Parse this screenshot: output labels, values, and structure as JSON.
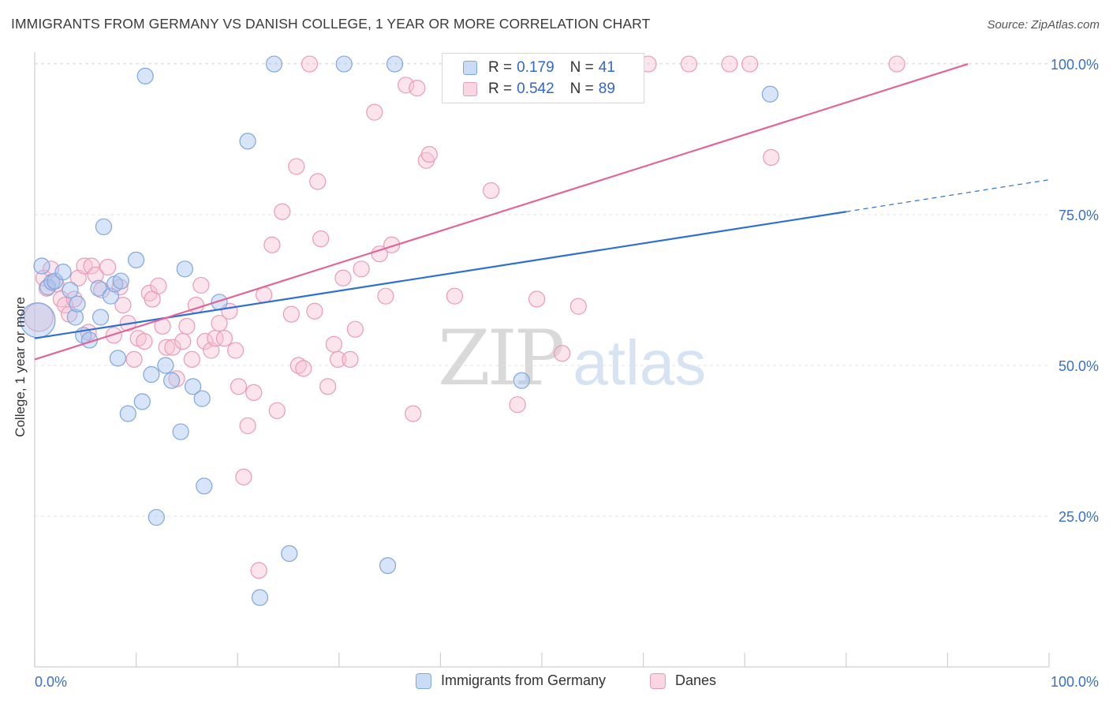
{
  "header": {
    "title": "IMMIGRANTS FROM GERMANY VS DANISH COLLEGE, 1 YEAR OR MORE CORRELATION CHART",
    "source": "Source: ZipAtlas.com"
  },
  "legend_top": {
    "rows": [
      {
        "r_label": "R =",
        "r_value": "0.179",
        "n_label": "N =",
        "n_value": "41",
        "color": "#a8c4ee",
        "border": "#7ea6e0"
      },
      {
        "r_label": "R =",
        "r_value": "0.542",
        "n_label": "N =",
        "n_value": "89",
        "color": "#f7c3d4",
        "border": "#ea9ab5"
      }
    ]
  },
  "watermark": {
    "zip": "ZIP",
    "atlas": "atlas"
  },
  "chart_data": {
    "type": "scatter",
    "title": "IMMIGRANTS FROM GERMANY VS DANISH COLLEGE, 1 YEAR OR MORE CORRELATION CHART",
    "xlabel": "",
    "ylabel": "College, 1 year or more",
    "xlim": [
      0,
      100
    ],
    "ylim": [
      0,
      103
    ],
    "x_tick_labels": [
      "0.0%",
      "100.0%"
    ],
    "y_ticks": [
      25,
      50,
      75,
      100
    ],
    "y_tick_labels": [
      "25.0%",
      "50.0%",
      "75.0%",
      "100.0%"
    ],
    "grid": true,
    "legend_placement": "bottom",
    "series": [
      {
        "name": "Immigrants from Germany",
        "color": "#a8c4ee",
        "edge": "#7ea6e0",
        "line_color": "#2f6fcf",
        "trend": {
          "x0": 0,
          "y0": 54.5,
          "x1": 80,
          "y1": 75.5,
          "dash_x1": 100,
          "dash_y1": 80.8
        },
        "points": [
          [
            0.3,
            57.5,
            22
          ],
          [
            0.7,
            66.5,
            10
          ],
          [
            1.3,
            63.0,
            10
          ],
          [
            1.7,
            63.8,
            10
          ],
          [
            2.0,
            64.0,
            10
          ],
          [
            2.8,
            65.5,
            10
          ],
          [
            3.5,
            62.5,
            10
          ],
          [
            4.0,
            58.0,
            10
          ],
          [
            4.2,
            60.2,
            10
          ],
          [
            4.8,
            55.0,
            10
          ],
          [
            5.4,
            54.2,
            10
          ],
          [
            6.3,
            62.8,
            10
          ],
          [
            6.5,
            58.0,
            10
          ],
          [
            6.8,
            73.0,
            10
          ],
          [
            7.5,
            61.5,
            10
          ],
          [
            7.9,
            63.5,
            10
          ],
          [
            8.2,
            51.2,
            10
          ],
          [
            8.5,
            64.0,
            10
          ],
          [
            9.2,
            42.0,
            10
          ],
          [
            10.0,
            67.5,
            10
          ],
          [
            10.6,
            44.0,
            10
          ],
          [
            10.9,
            98.0,
            10
          ],
          [
            11.5,
            48.5,
            10
          ],
          [
            12.0,
            24.8,
            10
          ],
          [
            12.9,
            50.0,
            10
          ],
          [
            13.5,
            47.5,
            10
          ],
          [
            14.4,
            39.0,
            10
          ],
          [
            14.8,
            66.0,
            10
          ],
          [
            15.6,
            46.5,
            10
          ],
          [
            16.5,
            44.5,
            10
          ],
          [
            16.7,
            30.0,
            10
          ],
          [
            18.2,
            60.5,
            10
          ],
          [
            21.0,
            87.2,
            10
          ],
          [
            22.2,
            11.5,
            10
          ],
          [
            23.6,
            100.0,
            10
          ],
          [
            25.1,
            18.8,
            10
          ],
          [
            30.5,
            100.0,
            10
          ],
          [
            34.8,
            16.8,
            10
          ],
          [
            35.5,
            100.0,
            10
          ],
          [
            48.0,
            47.5,
            10
          ],
          [
            72.5,
            95.0,
            10
          ]
        ]
      },
      {
        "name": "Danes",
        "color": "#f7c3d4",
        "edge": "#ea9ab5",
        "line_color": "#e0669a",
        "trend": {
          "x0": 0,
          "y0": 51.0,
          "x1": 92,
          "y1": 100.0
        },
        "points": [
          [
            0.4,
            58.0,
            18
          ],
          [
            0.9,
            64.5,
            10
          ],
          [
            1.2,
            62.8,
            10
          ],
          [
            1.6,
            66.0,
            10
          ],
          [
            2.1,
            63.5,
            10
          ],
          [
            2.6,
            61.0,
            10
          ],
          [
            3.0,
            60.0,
            10
          ],
          [
            3.4,
            58.5,
            10
          ],
          [
            3.9,
            61.0,
            10
          ],
          [
            4.3,
            64.5,
            10
          ],
          [
            4.9,
            66.5,
            10
          ],
          [
            5.3,
            55.5,
            10
          ],
          [
            5.6,
            66.5,
            10
          ],
          [
            6.0,
            65.0,
            10
          ],
          [
            6.6,
            62.5,
            10
          ],
          [
            7.2,
            66.3,
            10
          ],
          [
            7.8,
            55.0,
            10
          ],
          [
            8.4,
            63.0,
            10
          ],
          [
            8.7,
            60.0,
            10
          ],
          [
            9.2,
            57.0,
            10
          ],
          [
            9.8,
            51.0,
            10
          ],
          [
            10.2,
            54.5,
            10
          ],
          [
            10.8,
            54.0,
            10
          ],
          [
            11.3,
            62.0,
            10
          ],
          [
            11.6,
            61.0,
            10
          ],
          [
            12.2,
            63.2,
            10
          ],
          [
            12.6,
            56.5,
            10
          ],
          [
            13.0,
            53.0,
            10
          ],
          [
            13.6,
            53.0,
            10
          ],
          [
            14.0,
            47.8,
            10
          ],
          [
            14.6,
            54.0,
            10
          ],
          [
            15.0,
            56.5,
            10
          ],
          [
            15.5,
            51.0,
            10
          ],
          [
            15.9,
            60.0,
            10
          ],
          [
            16.4,
            63.3,
            10
          ],
          [
            16.8,
            54.0,
            10
          ],
          [
            17.4,
            52.5,
            10
          ],
          [
            17.8,
            54.5,
            10
          ],
          [
            18.2,
            57.0,
            10
          ],
          [
            18.7,
            54.5,
            10
          ],
          [
            19.2,
            59.0,
            10
          ],
          [
            19.8,
            52.5,
            10
          ],
          [
            20.1,
            46.5,
            10
          ],
          [
            20.6,
            31.5,
            10
          ],
          [
            21.0,
            40.0,
            10
          ],
          [
            21.6,
            45.5,
            10
          ],
          [
            22.1,
            16.0,
            10
          ],
          [
            22.6,
            61.7,
            10
          ],
          [
            23.4,
            70.0,
            10
          ],
          [
            23.9,
            42.5,
            10
          ],
          [
            24.4,
            75.5,
            10
          ],
          [
            25.3,
            58.5,
            10
          ],
          [
            25.8,
            83.0,
            10
          ],
          [
            26.0,
            50.0,
            10
          ],
          [
            26.5,
            49.5,
            10
          ],
          [
            27.1,
            100.0,
            10
          ],
          [
            27.6,
            59.0,
            10
          ],
          [
            27.9,
            80.5,
            10
          ],
          [
            28.2,
            71.0,
            10
          ],
          [
            28.9,
            46.5,
            10
          ],
          [
            29.5,
            53.5,
            10
          ],
          [
            29.9,
            51.0,
            10
          ],
          [
            30.4,
            64.5,
            10
          ],
          [
            31.1,
            51.0,
            10
          ],
          [
            31.6,
            56.0,
            10
          ],
          [
            32.2,
            66.0,
            10
          ],
          [
            33.5,
            92.0,
            10
          ],
          [
            34.0,
            68.5,
            10
          ],
          [
            34.6,
            61.5,
            10
          ],
          [
            35.2,
            70.0,
            10
          ],
          [
            36.6,
            96.5,
            10
          ],
          [
            37.3,
            42.0,
            10
          ],
          [
            37.7,
            96.0,
            10
          ],
          [
            38.6,
            84.0,
            10
          ],
          [
            38.9,
            85.0,
            10
          ],
          [
            41.4,
            61.5,
            10
          ],
          [
            44.0,
            100.0,
            10
          ],
          [
            45.0,
            79.0,
            10
          ],
          [
            47.6,
            43.5,
            10
          ],
          [
            49.5,
            61.0,
            10
          ],
          [
            50.5,
            100.0,
            10
          ],
          [
            52.0,
            52.0,
            10
          ],
          [
            53.6,
            59.8,
            10
          ],
          [
            60.5,
            100.0,
            10
          ],
          [
            64.5,
            100.0,
            10
          ],
          [
            68.5,
            100.0,
            10
          ],
          [
            70.5,
            100.0,
            10
          ],
          [
            72.6,
            84.5,
            10
          ],
          [
            85.0,
            100.0,
            10
          ]
        ]
      }
    ]
  }
}
